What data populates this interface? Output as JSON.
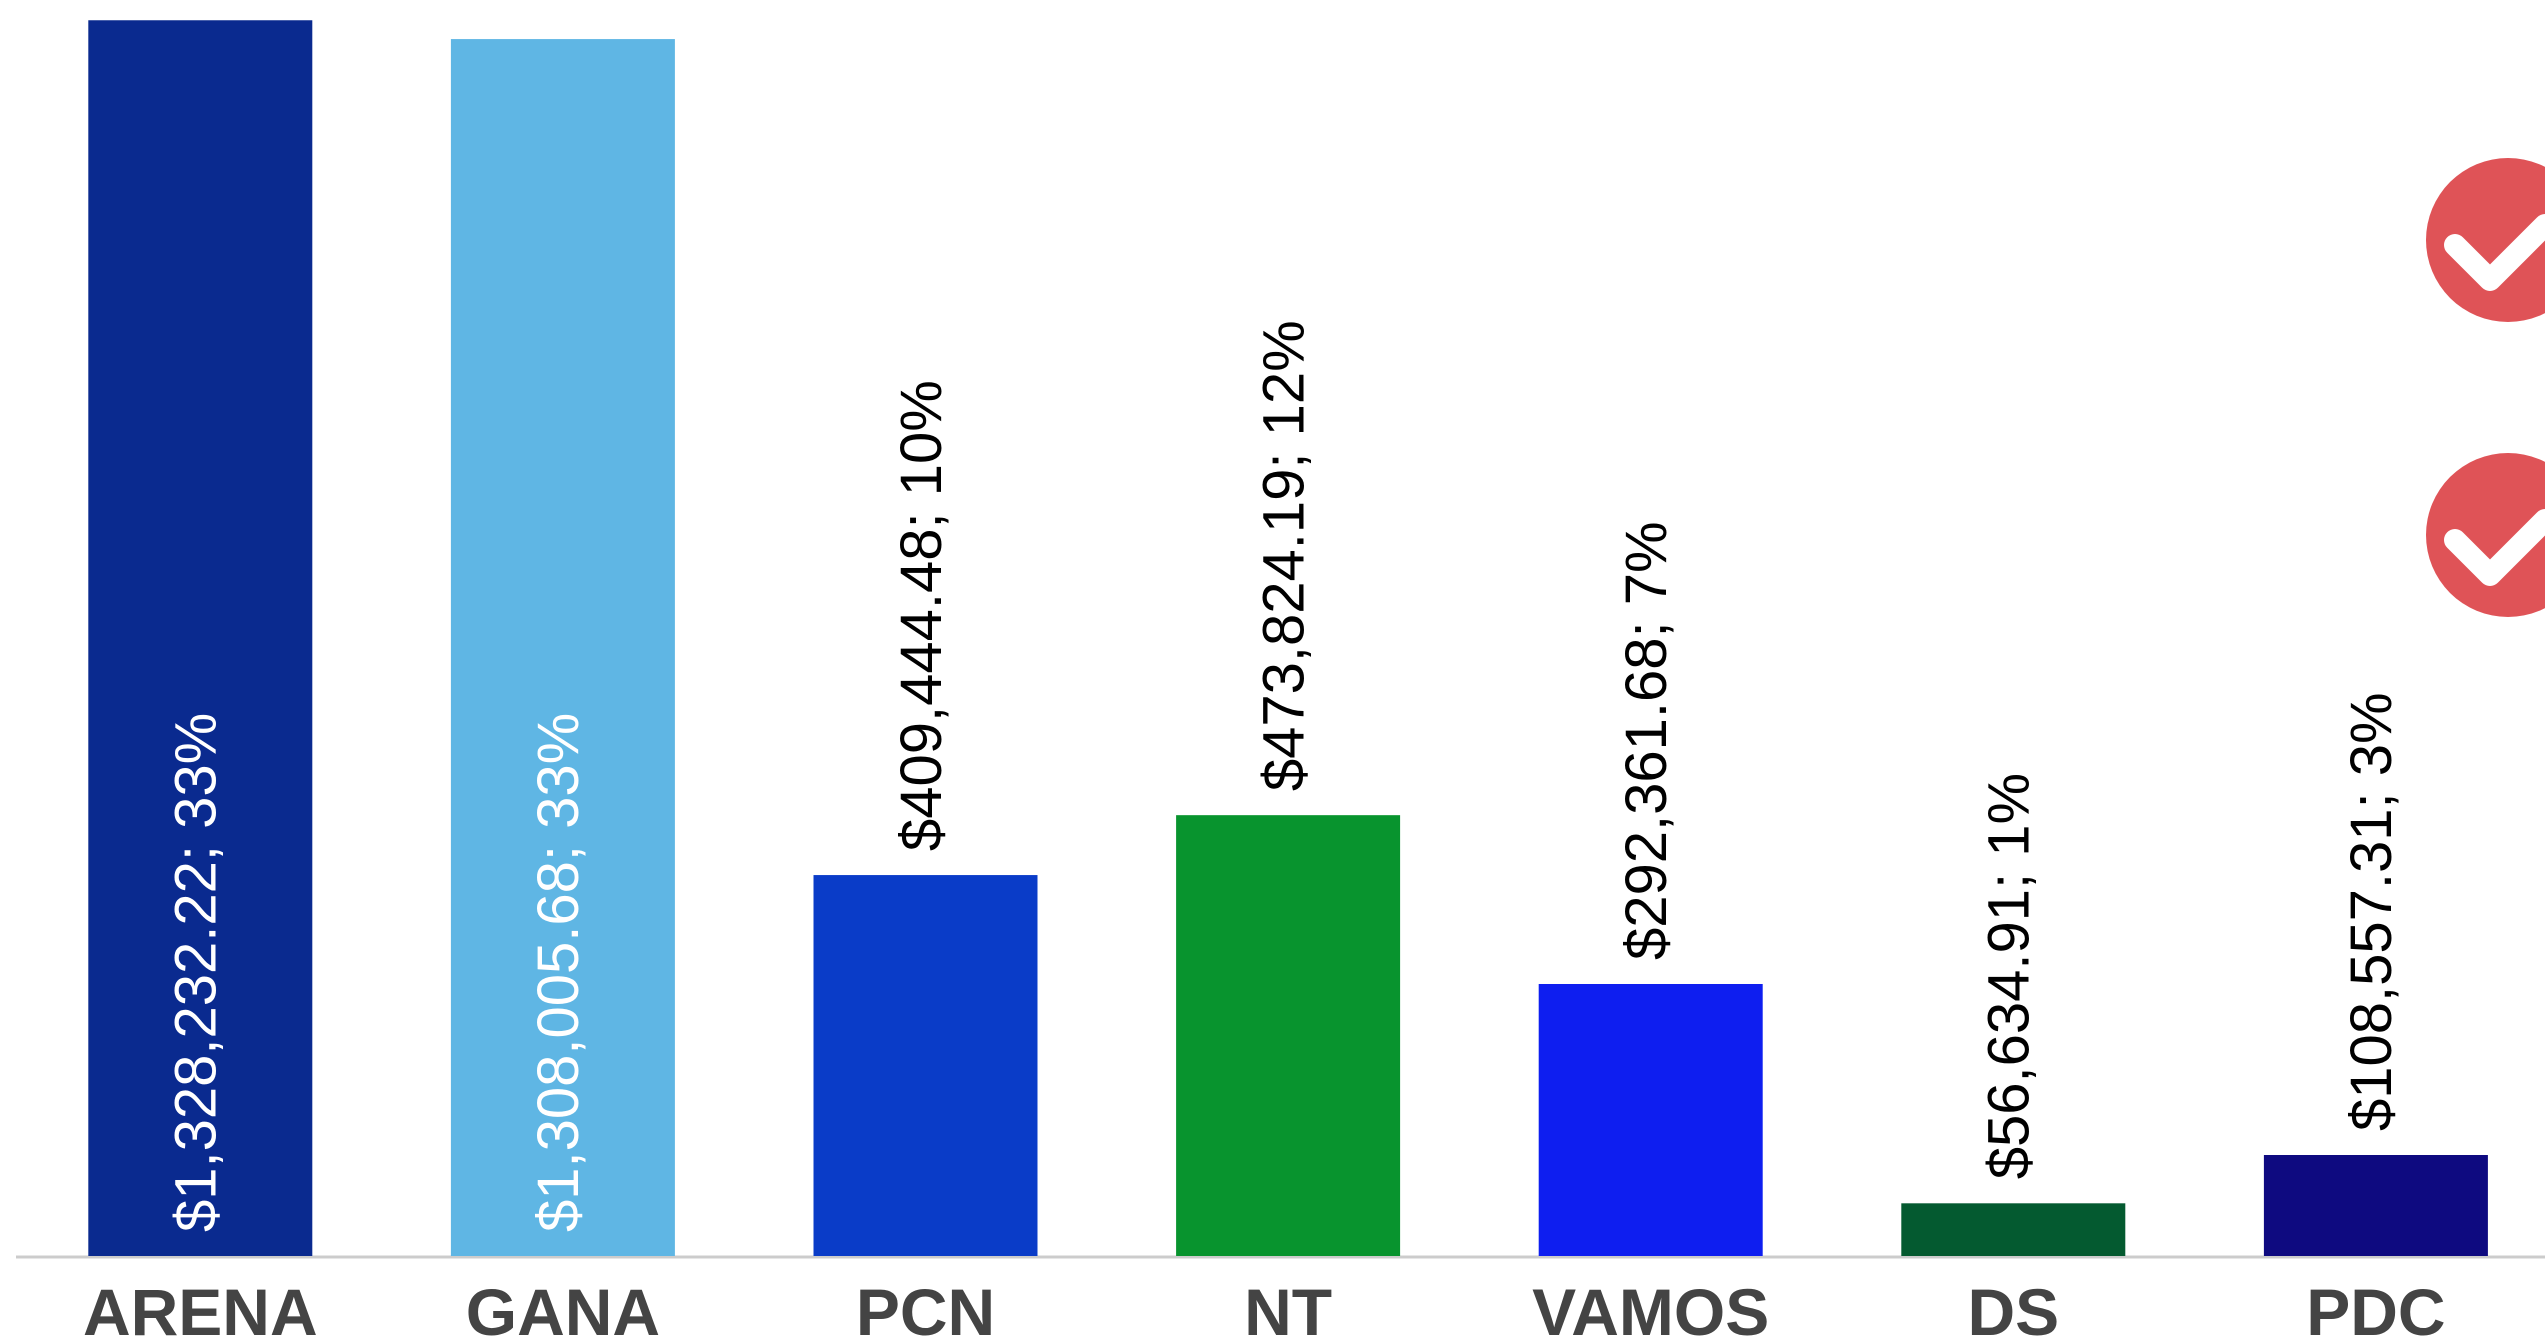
{
  "chart_data": {
    "type": "bar",
    "categories": [
      "ARENA",
      "GANA",
      "PCN",
      "NT",
      "VAMOS",
      "DS",
      "PDC"
    ],
    "series": [
      {
        "values": [
          1328232.22,
          1308005.68,
          409444.48,
          473824.19,
          292361.68,
          56634.91,
          108557.31
        ],
        "value_labels": [
          "$1,328,232.22; 33%",
          "$1,308,005.68; 33%",
          "$409,444.48; 10%",
          "$473,824.19; 12%",
          "$292,361.68; 7%",
          "$56,634.91; 1%",
          "$108,557.31; 3%"
        ],
        "colors": [
          "#0a2a8f",
          "#5fb6e4",
          "#0a3cc8",
          "#08942e",
          "#0e1ef0",
          "#045a30",
          "#0e0a80"
        ]
      }
    ],
    "ylim": [
      0,
      1350000
    ]
  }
}
